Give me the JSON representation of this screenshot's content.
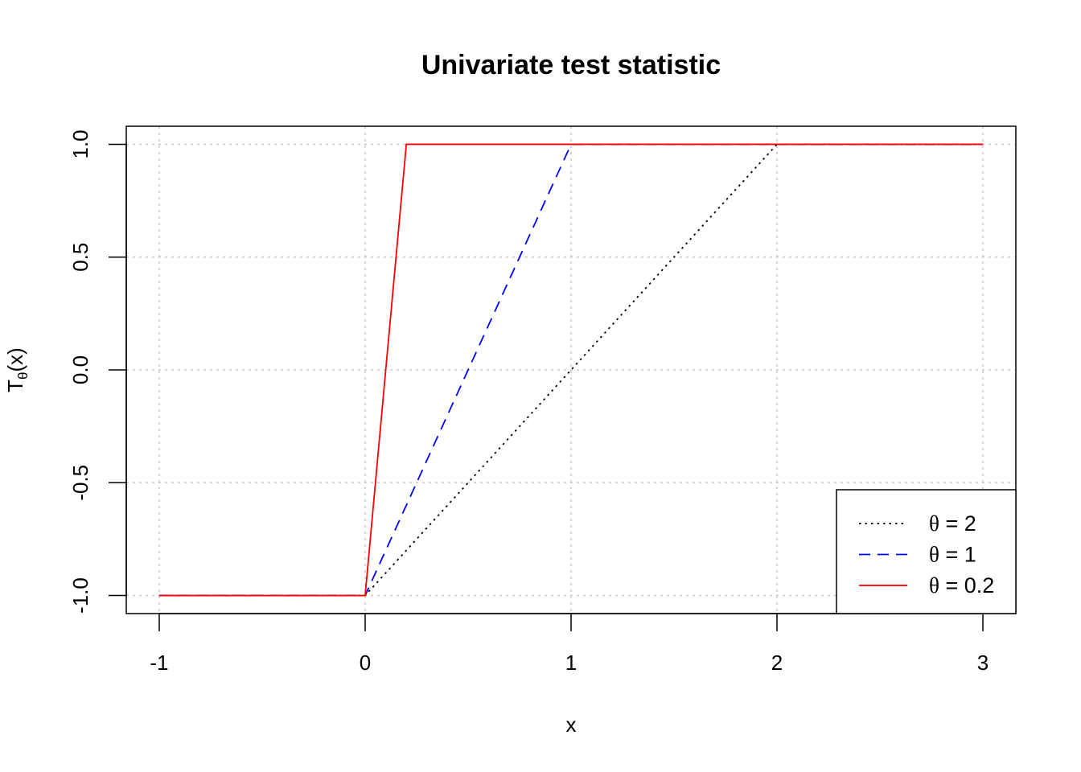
{
  "chart_data": {
    "type": "line",
    "title": "Univariate test statistic",
    "xlabel": "x",
    "ylabel": {
      "main": "T",
      "sub": "θ",
      "suffix": "(x)"
    },
    "xlim": [
      -1.16,
      3.16
    ],
    "ylim": [
      -1.08,
      1.08
    ],
    "x_ticks": [
      -1,
      0,
      1,
      2,
      3
    ],
    "x_tick_labels": [
      "-1",
      "0",
      "1",
      "2",
      "3"
    ],
    "y_ticks": [
      -1.0,
      -0.5,
      0.0,
      0.5,
      1.0
    ],
    "y_tick_labels": [
      "-1.0",
      "-0.5",
      "0.0",
      "0.5",
      "1.0"
    ],
    "grid": true,
    "legend_position": "bottom-right",
    "series": [
      {
        "name": "θ = 2",
        "legend": {
          "symbol": "θ",
          "eq": " = ",
          "value": "2"
        },
        "color": "#000000",
        "linestyle": "dotted",
        "x": [
          -1,
          0,
          2,
          3
        ],
        "y": [
          -1,
          -1,
          1,
          1
        ]
      },
      {
        "name": "θ = 1",
        "legend": {
          "symbol": "θ",
          "eq": " = ",
          "value": "1"
        },
        "color": "#0000ff",
        "linestyle": "dashed",
        "x": [
          -1,
          0,
          1,
          3
        ],
        "y": [
          -1,
          -1,
          1,
          1
        ]
      },
      {
        "name": "θ = 0.2",
        "legend": {
          "symbol": "θ",
          "eq": " = ",
          "value": "0.2"
        },
        "color": "#ff0000",
        "linestyle": "solid",
        "x": [
          -1,
          0,
          0.2,
          3
        ],
        "y": [
          -1,
          -1,
          1,
          1
        ]
      }
    ]
  }
}
